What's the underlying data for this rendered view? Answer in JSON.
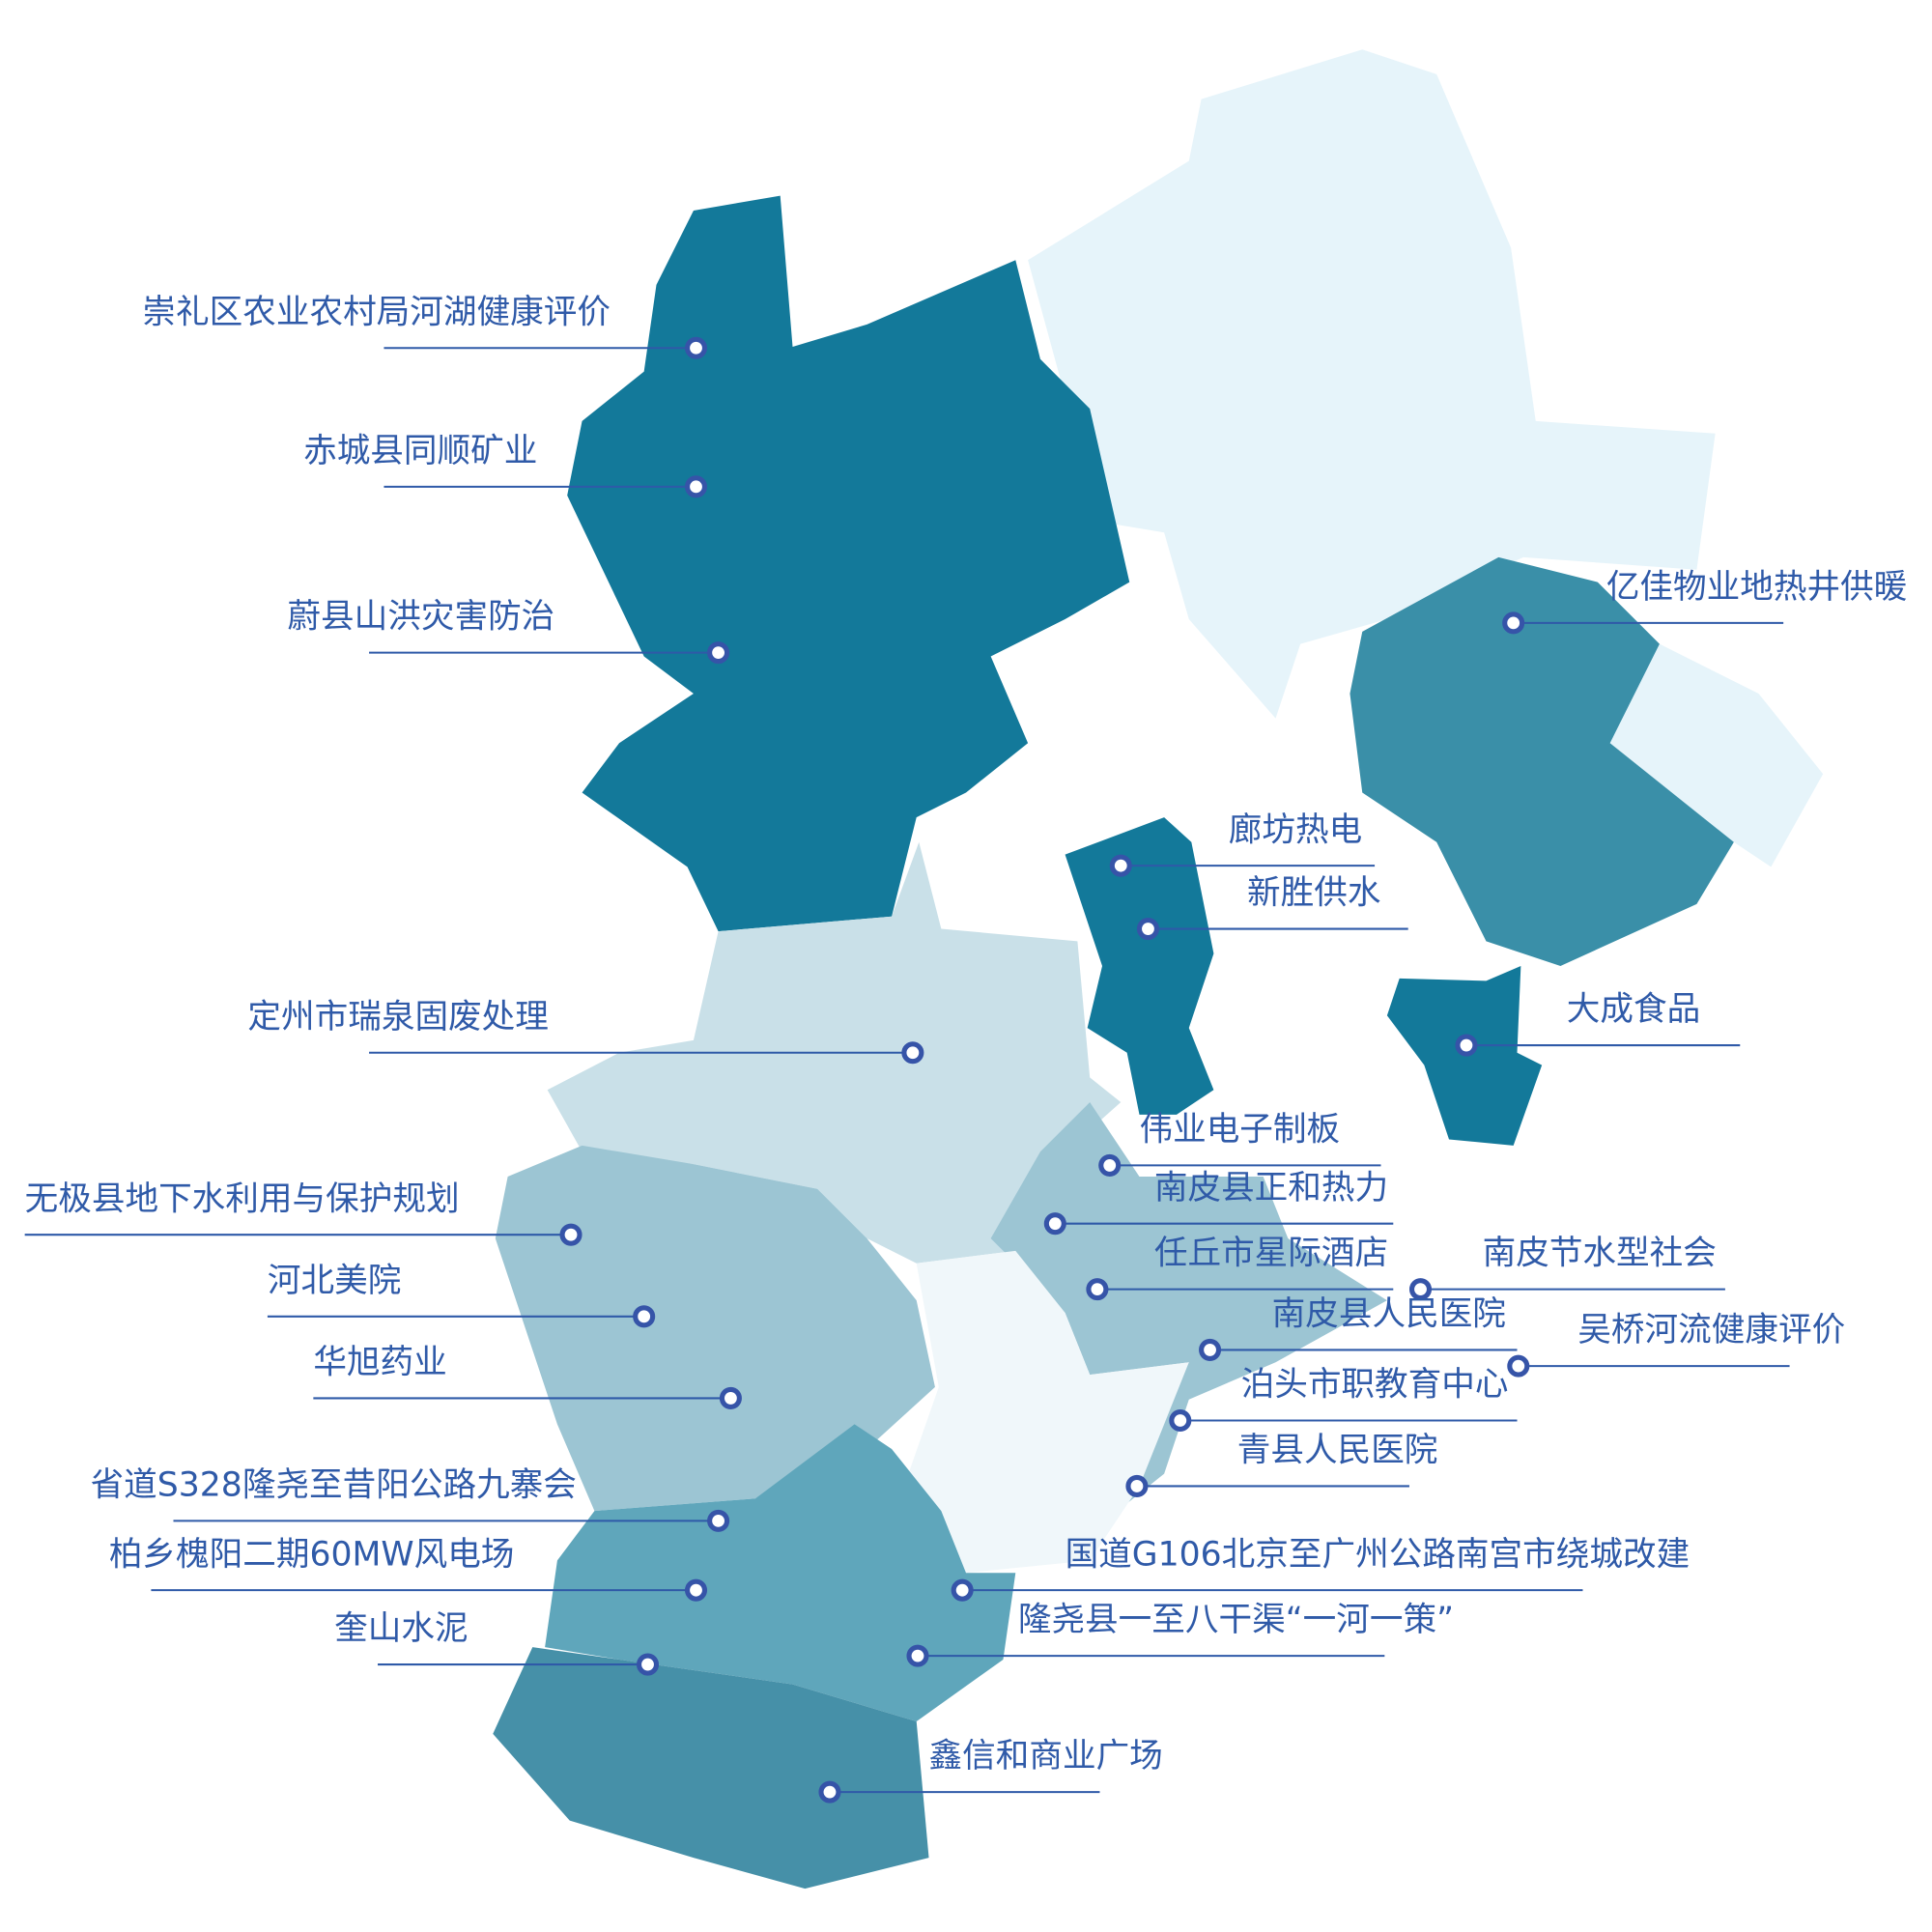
{
  "markers": [
    {
      "label": "崇礼区农业农村局河湖健康评价"
    },
    {
      "label": "赤城县同顺矿业"
    },
    {
      "label": "蔚县山洪灾害防治"
    },
    {
      "label": "亿佳物业地热井供暖"
    },
    {
      "label": "廊坊热电"
    },
    {
      "label": "新胜供水"
    },
    {
      "label": "大成食品"
    },
    {
      "label": "定州市瑞泉固废处理"
    },
    {
      "label": "伟业电子制板"
    },
    {
      "label": "南皮县正和热力"
    },
    {
      "label": "无极县地下水利用与保护规划"
    },
    {
      "label": "任丘市星际酒店"
    },
    {
      "label": "南皮节水型社会"
    },
    {
      "label": "河北美院"
    },
    {
      "label": "南皮县人民医院"
    },
    {
      "label": "吴桥河流健康评价"
    },
    {
      "label": "华旭药业"
    },
    {
      "label": "泊头市职教育中心"
    },
    {
      "label": "青县人民医院"
    },
    {
      "label": "省道S328隆尧至昔阳公路九寨会"
    },
    {
      "label": "柏乡槐阳二期60MW风电场"
    },
    {
      "label": "国道G106北京至广州公路南宫市绕城改建"
    },
    {
      "label": "奎山水泥"
    },
    {
      "label": "隆尧县一至八干渠“一河一策”"
    },
    {
      "label": "鑫信和商业广场"
    }
  ]
}
